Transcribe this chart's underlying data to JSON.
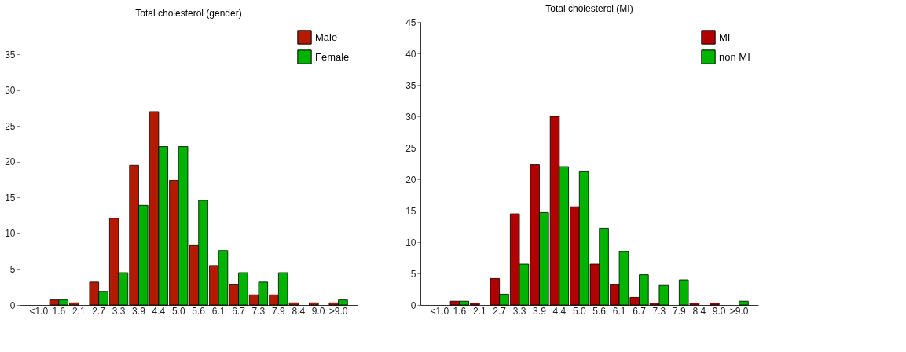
{
  "chart_data": [
    {
      "type": "bar",
      "title": "Total cholesterol (gender)",
      "categories": [
        "<1.0",
        "1.6",
        "2.1",
        "2.7",
        "3.3",
        "3.9",
        "4.4",
        "5.0",
        "5.6",
        "6.1",
        "6.7",
        "7.3",
        "7.9",
        "8.4",
        "9.0",
        ">9.0"
      ],
      "ylim": [
        0,
        39.5
      ],
      "yticks": [
        0,
        5,
        10,
        15,
        20,
        25,
        30,
        35
      ],
      "grid": false,
      "legend": "top right",
      "series": [
        {
          "name": "Male",
          "color": "#b31a00",
          "values": [
            0,
            0.7,
            0.3,
            3.2,
            12.1,
            19.5,
            27.0,
            17.4,
            8.3,
            5.5,
            2.8,
            1.4,
            1.4,
            0.3,
            0.3,
            0.3
          ]
        },
        {
          "name": "Female",
          "color": "#00b300",
          "values": [
            0,
            0.7,
            0,
            1.9,
            4.5,
            13.9,
            22.1,
            22.1,
            14.6,
            7.6,
            4.5,
            3.2,
            4.5,
            0,
            0,
            0.7
          ]
        }
      ]
    },
    {
      "type": "bar",
      "title": "Total cholesterol (MI)",
      "categories": [
        "<1.0",
        "1.6",
        "2.1",
        "2.7",
        "3.3",
        "3.9",
        "4.4",
        "5.0",
        "5.6",
        "6.1",
        "6.7",
        "7.3",
        "7.9",
        "8.4",
        "9.0",
        ">9.0"
      ],
      "ylim": [
        0,
        45
      ],
      "yticks": [
        0,
        5,
        10,
        15,
        20,
        25,
        30,
        35,
        40,
        45
      ],
      "grid": false,
      "legend": "top right",
      "series": [
        {
          "name": "MI",
          "color": "#b00000",
          "values": [
            0,
            0.6,
            0.3,
            4.2,
            14.5,
            22.3,
            30.0,
            15.6,
            6.5,
            3.2,
            1.2,
            0.3,
            0,
            0.3,
            0.3,
            0
          ]
        },
        {
          "name": "non MI",
          "color": "#00b400",
          "values": [
            0,
            0.6,
            0,
            1.7,
            6.5,
            14.7,
            22.0,
            21.2,
            12.2,
            8.5,
            4.8,
            3.1,
            4.0,
            0,
            0,
            0.6
          ]
        }
      ]
    }
  ]
}
